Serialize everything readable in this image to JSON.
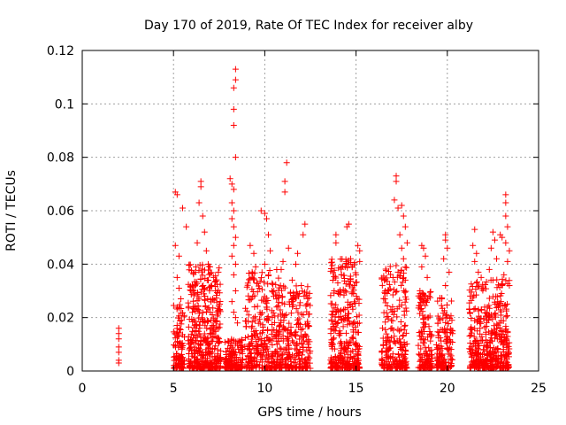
{
  "chart_data": {
    "type": "scatter",
    "title": "Day 170 of 2019, Rate Of TEC Index for receiver alby",
    "xlabel": "GPS time / hours",
    "ylabel": "ROTI / TECUs",
    "xlim": [
      0,
      25
    ],
    "ylim": [
      0,
      0.12
    ],
    "x_ticks": [
      0,
      5,
      10,
      15,
      20,
      25
    ],
    "y_ticks": [
      0,
      0.02,
      0.04,
      0.06,
      0.08,
      0.1,
      0.12
    ],
    "x_tick_labels": [
      "0",
      "5",
      "10",
      "15",
      "20",
      "25"
    ],
    "y_tick_labels": [
      "0",
      "0.02",
      "0.04",
      "0.06",
      "0.08",
      "0.1",
      "0.12"
    ],
    "grid": true,
    "marker": "+",
    "color": "#ff0000",
    "series": [
      {
        "name": "ROTI",
        "points": [
          [
            2.0,
            0.004
          ],
          [
            2.0,
            0.007
          ],
          [
            2.0,
            0.009
          ],
          [
            2.0,
            0.012
          ],
          [
            2.0,
            0.014
          ],
          [
            2.0,
            0.016
          ],
          [
            2.0,
            0.003
          ],
          [
            5.1,
            0.067
          ],
          [
            5.2,
            0.066
          ],
          [
            5.1,
            0.047
          ],
          [
            5.3,
            0.043
          ],
          [
            5.2,
            0.035
          ],
          [
            5.5,
            0.061
          ],
          [
            5.7,
            0.054
          ],
          [
            5.3,
            0.031
          ],
          [
            5.4,
            0.027
          ],
          [
            6.5,
            0.071
          ],
          [
            6.5,
            0.069
          ],
          [
            6.4,
            0.063
          ],
          [
            6.7,
            0.052
          ],
          [
            6.8,
            0.045
          ],
          [
            6.9,
            0.04
          ],
          [
            7.0,
            0.039
          ],
          [
            7.2,
            0.035
          ],
          [
            7.3,
            0.03
          ],
          [
            6.6,
            0.058
          ],
          [
            6.3,
            0.048
          ],
          [
            8.1,
            0.072
          ],
          [
            8.2,
            0.07
          ],
          [
            8.3,
            0.068
          ],
          [
            8.2,
            0.063
          ],
          [
            8.3,
            0.06
          ],
          [
            8.2,
            0.057
          ],
          [
            8.3,
            0.054
          ],
          [
            8.4,
            0.05
          ],
          [
            8.3,
            0.047
          ],
          [
            8.2,
            0.043
          ],
          [
            8.4,
            0.04
          ],
          [
            8.3,
            0.036
          ],
          [
            8.4,
            0.03
          ],
          [
            8.2,
            0.026
          ],
          [
            8.3,
            0.022
          ],
          [
            8.4,
            0.02
          ],
          [
            8.5,
            0.018
          ],
          [
            8.4,
            0.113
          ],
          [
            8.4,
            0.109
          ],
          [
            8.3,
            0.106
          ],
          [
            8.3,
            0.098
          ],
          [
            8.3,
            0.092
          ],
          [
            8.4,
            0.08
          ],
          [
            9.2,
            0.047
          ],
          [
            9.4,
            0.044
          ],
          [
            9.5,
            0.039
          ],
          [
            9.3,
            0.035
          ],
          [
            9.8,
            0.06
          ],
          [
            10.0,
            0.059
          ],
          [
            10.1,
            0.057
          ],
          [
            10.2,
            0.051
          ],
          [
            10.3,
            0.045
          ],
          [
            10.0,
            0.04
          ],
          [
            10.2,
            0.036
          ],
          [
            9.7,
            0.031
          ],
          [
            10.5,
            0.03
          ],
          [
            11.2,
            0.078
          ],
          [
            11.1,
            0.071
          ],
          [
            11.1,
            0.067
          ],
          [
            11.0,
            0.041
          ],
          [
            10.9,
            0.038
          ],
          [
            11.3,
            0.046
          ],
          [
            11.5,
            0.034
          ],
          [
            12.2,
            0.055
          ],
          [
            12.1,
            0.051
          ],
          [
            11.8,
            0.044
          ],
          [
            11.7,
            0.04
          ],
          [
            12.0,
            0.032
          ],
          [
            11.9,
            0.029
          ],
          [
            12.3,
            0.025
          ],
          [
            13.9,
            0.051
          ],
          [
            13.9,
            0.048
          ],
          [
            14.2,
            0.036
          ],
          [
            14.0,
            0.033
          ],
          [
            13.8,
            0.03
          ],
          [
            14.6,
            0.055
          ],
          [
            14.5,
            0.054
          ],
          [
            14.7,
            0.042
          ],
          [
            14.6,
            0.04
          ],
          [
            14.4,
            0.03
          ],
          [
            15.1,
            0.047
          ],
          [
            15.2,
            0.045
          ],
          [
            15.2,
            0.041
          ],
          [
            15.0,
            0.036
          ],
          [
            14.9,
            0.032
          ],
          [
            16.6,
            0.03
          ],
          [
            16.7,
            0.029
          ],
          [
            17.0,
            0.024
          ],
          [
            17.2,
            0.073
          ],
          [
            17.2,
            0.071
          ],
          [
            17.1,
            0.064
          ],
          [
            17.3,
            0.061
          ],
          [
            17.5,
            0.062
          ],
          [
            17.6,
            0.058
          ],
          [
            17.7,
            0.054
          ],
          [
            17.4,
            0.051
          ],
          [
            17.5,
            0.046
          ],
          [
            17.8,
            0.048
          ],
          [
            17.6,
            0.042
          ],
          [
            17.3,
            0.037
          ],
          [
            17.7,
            0.034
          ],
          [
            18.6,
            0.047
          ],
          [
            18.7,
            0.046
          ],
          [
            18.8,
            0.043
          ],
          [
            18.6,
            0.039
          ],
          [
            18.9,
            0.035
          ],
          [
            18.5,
            0.03
          ],
          [
            19.0,
            0.028
          ],
          [
            19.9,
            0.051
          ],
          [
            19.9,
            0.049
          ],
          [
            20.0,
            0.046
          ],
          [
            19.8,
            0.042
          ],
          [
            20.1,
            0.037
          ],
          [
            19.9,
            0.032
          ],
          [
            19.7,
            0.027
          ],
          [
            21.5,
            0.053
          ],
          [
            21.4,
            0.047
          ],
          [
            21.6,
            0.044
          ],
          [
            21.5,
            0.041
          ],
          [
            21.7,
            0.037
          ],
          [
            21.6,
            0.033
          ],
          [
            22.5,
            0.052
          ],
          [
            22.6,
            0.049
          ],
          [
            22.4,
            0.046
          ],
          [
            22.7,
            0.042
          ],
          [
            22.3,
            0.038
          ],
          [
            22.5,
            0.034
          ],
          [
            22.9,
            0.051
          ],
          [
            23.0,
            0.05
          ],
          [
            23.2,
            0.066
          ],
          [
            23.2,
            0.063
          ],
          [
            23.2,
            0.058
          ],
          [
            23.3,
            0.054
          ],
          [
            23.2,
            0.048
          ],
          [
            23.4,
            0.045
          ],
          [
            23.3,
            0.041
          ],
          [
            23.1,
            0.036
          ],
          [
            23.4,
            0.032
          ]
        ]
      }
    ],
    "dense_clusters": [
      {
        "x_range": [
          5.0,
          5.6
        ],
        "y_range": [
          0.001,
          0.025
        ],
        "count": 100
      },
      {
        "x_range": [
          5.8,
          7.6
        ],
        "y_range": [
          0.001,
          0.04
        ],
        "count": 420
      },
      {
        "x_range": [
          7.8,
          8.8
        ],
        "y_range": [
          0.001,
          0.012
        ],
        "count": 160
      },
      {
        "x_range": [
          8.9,
          10.8
        ],
        "y_range": [
          0.001,
          0.038
        ],
        "count": 300
      },
      {
        "x_range": [
          10.8,
          12.5
        ],
        "y_range": [
          0.001,
          0.032
        ],
        "count": 260
      },
      {
        "x_range": [
          13.6,
          15.2
        ],
        "y_range": [
          0.001,
          0.042
        ],
        "count": 330
      },
      {
        "x_range": [
          16.4,
          17.8
        ],
        "y_range": [
          0.001,
          0.04
        ],
        "count": 230
      },
      {
        "x_range": [
          18.4,
          19.2
        ],
        "y_range": [
          0.001,
          0.03
        ],
        "count": 140
      },
      {
        "x_range": [
          19.4,
          20.3
        ],
        "y_range": [
          0.001,
          0.028
        ],
        "count": 150
      },
      {
        "x_range": [
          21.2,
          23.4
        ],
        "y_range": [
          0.001,
          0.035
        ],
        "count": 440
      }
    ]
  }
}
